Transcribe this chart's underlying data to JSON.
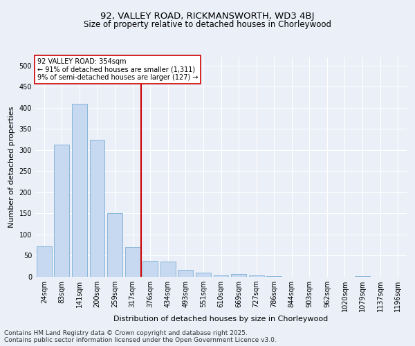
{
  "title_line1": "92, VALLEY ROAD, RICKMANSWORTH, WD3 4BJ",
  "title_line2": "Size of property relative to detached houses in Chorleywood",
  "xlabel": "Distribution of detached houses by size in Chorleywood",
  "ylabel": "Number of detached properties",
  "categories": [
    "24sqm",
    "83sqm",
    "141sqm",
    "200sqm",
    "259sqm",
    "317sqm",
    "376sqm",
    "434sqm",
    "493sqm",
    "551sqm",
    "610sqm",
    "669sqm",
    "727sqm",
    "786sqm",
    "844sqm",
    "903sqm",
    "962sqm",
    "1020sqm",
    "1079sqm",
    "1137sqm",
    "1196sqm"
  ],
  "values": [
    72,
    312,
    410,
    325,
    150,
    70,
    38,
    36,
    17,
    10,
    4,
    6,
    3,
    1,
    0,
    0,
    0,
    0,
    2,
    0,
    0
  ],
  "bar_color": "#c6d9f0",
  "bar_edge_color": "#7bafd4",
  "vline_x": 6.0,
  "vline_color": "#cc0000",
  "annotation_text": "92 VALLEY ROAD: 354sqm\n← 91% of detached houses are smaller (1,311)\n9% of semi-detached houses are larger (127) →",
  "annotation_box_color": "#ffffff",
  "annotation_box_edge": "#cc0000",
  "ylim": [
    0,
    520
  ],
  "yticks": [
    0,
    50,
    100,
    150,
    200,
    250,
    300,
    350,
    400,
    450,
    500
  ],
  "footer_text": "Contains HM Land Registry data © Crown copyright and database right 2025.\nContains public sector information licensed under the Open Government Licence v3.0.",
  "background_color": "#eaeff8",
  "plot_bg_color": "#eaeff8",
  "grid_color": "#ffffff",
  "title_fontsize": 9.5,
  "subtitle_fontsize": 8.5,
  "axis_label_fontsize": 8,
  "tick_fontsize": 7,
  "annotation_fontsize": 7,
  "footer_fontsize": 6.5
}
